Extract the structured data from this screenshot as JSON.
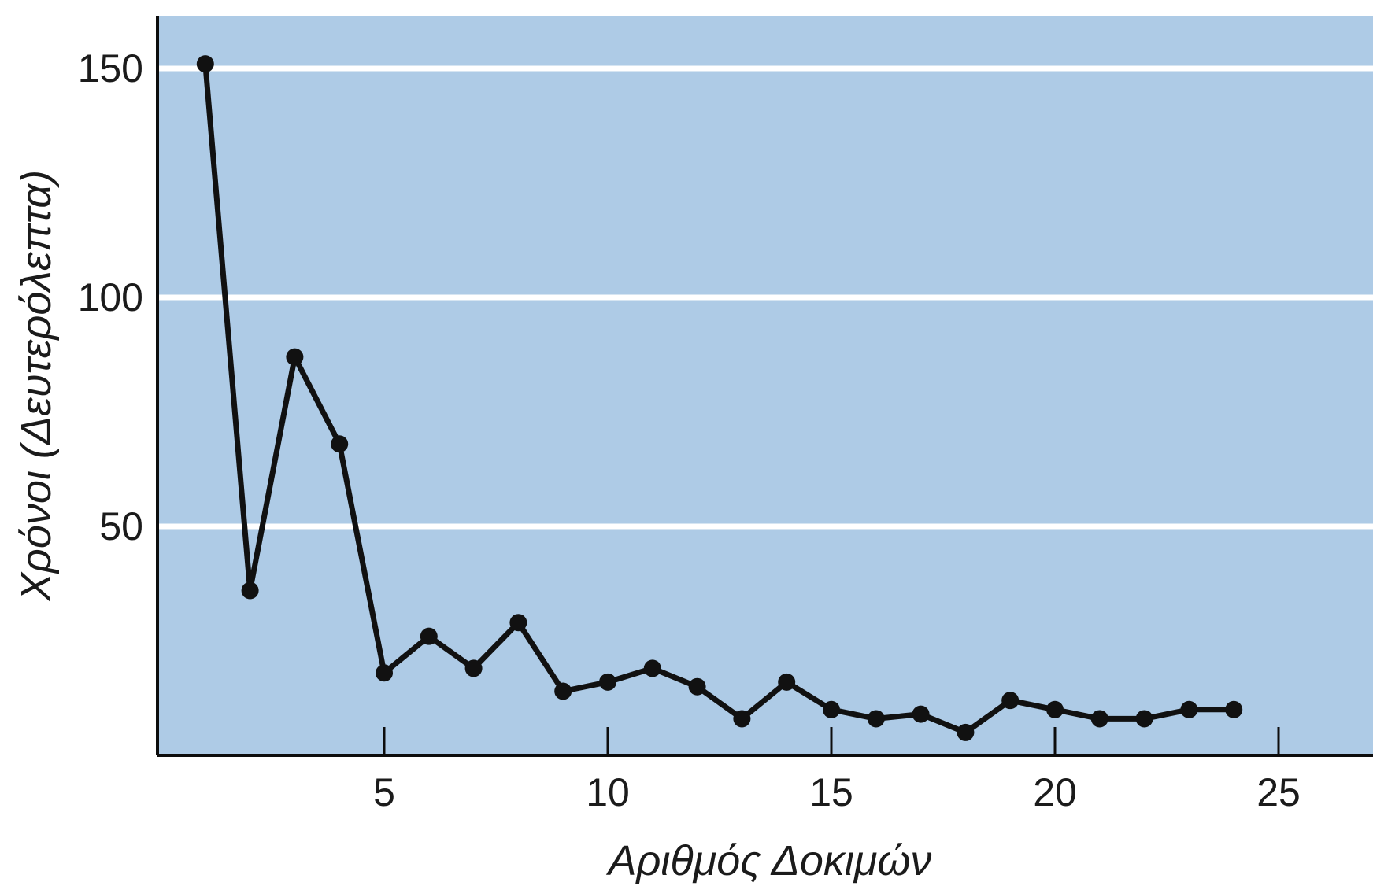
{
  "chart_data": {
    "type": "line",
    "title": "",
    "xlabel": "Αριθμός Δοκιμών",
    "ylabel": "Χρόνοι (Δευτερόλεπτα)",
    "xlim": [
      0,
      27
    ],
    "ylim": [
      0,
      165
    ],
    "xticks": [
      5,
      10,
      15,
      20,
      25
    ],
    "yticks": [
      50,
      100,
      150
    ],
    "grid": {
      "horizontal": true,
      "vertical": false,
      "color": "#ffffff"
    },
    "colors": {
      "plot_background": "#aecbe6",
      "line": "#111111",
      "axis": "#0d0d0d"
    },
    "series": [
      {
        "x": [
          1,
          2,
          3,
          4,
          5,
          6,
          7,
          8,
          9,
          10,
          11,
          12,
          13,
          14,
          15,
          16,
          17,
          18,
          19,
          20,
          21,
          22,
          23,
          24
        ],
        "y": [
          151,
          36,
          87,
          68,
          18,
          26,
          19,
          29,
          14,
          16,
          19,
          15,
          8,
          16,
          10,
          8,
          9,
          5,
          12,
          10,
          8,
          8,
          10,
          10
        ]
      }
    ]
  }
}
